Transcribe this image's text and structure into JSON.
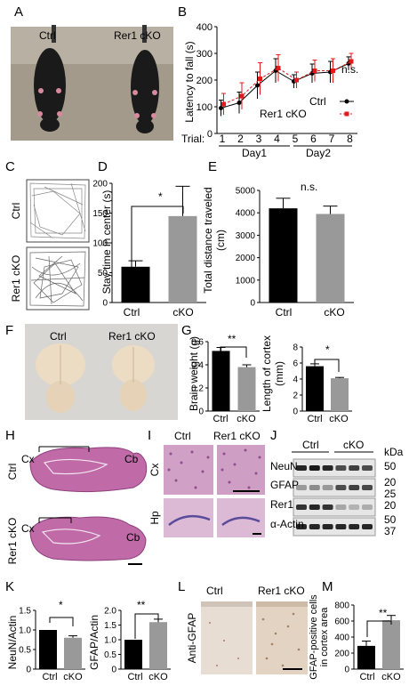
{
  "panels": {
    "A": {
      "letter": "A",
      "ctrl": "Ctrl",
      "cko": "Rer1 cKO"
    },
    "B": {
      "letter": "B",
      "ylabel": "Latency to fall (s)",
      "yticks": [
        "0",
        "100",
        "200",
        "300",
        "400"
      ],
      "trial_label": "Trial:",
      "trials": [
        "1",
        "2",
        "3",
        "4",
        "5",
        "6",
        "7",
        "8"
      ],
      "day1": "Day1",
      "day2": "Day2",
      "sig": "n.s.",
      "legend_ctrl": "Ctrl",
      "legend_cko": "Rer1 cKO"
    },
    "C": {
      "letter": "C",
      "ctrl": "Ctrl",
      "cko": "Rer1 cKO"
    },
    "D": {
      "letter": "D",
      "ylabel": "Stay time in center (s)",
      "yticks": [
        "0",
        "50",
        "100",
        "150",
        "200"
      ],
      "cat_ctrl": "Ctrl",
      "cat_cko": "cKO",
      "sig": "*"
    },
    "E": {
      "letter": "E",
      "ylabel_1": "Total distance traveled",
      "ylabel_2": "(cm)",
      "yticks": [
        "0",
        "1000",
        "2000",
        "3000",
        "4000",
        "5000"
      ],
      "cat_ctrl": "Ctrl",
      "cat_cko": "cKO",
      "sig": "n.s."
    },
    "F": {
      "letter": "F",
      "ctrl": "Ctrl",
      "cko": "Rer1 cKO"
    },
    "G": {
      "letter": "G",
      "ylabel_left": "Brain weight (g)",
      "yticks_left": [
        "0",
        "0.2",
        "0.4",
        "0.6"
      ],
      "ylabel_right_1": "Length of cortex",
      "ylabel_right_2": "(mm)",
      "yticks_right": [
        "0",
        "2",
        "4",
        "6",
        "8"
      ],
      "cat_ctrl": "Ctrl",
      "cat_cko": "cKO",
      "sig_left": "**",
      "sig_right": "*"
    },
    "H": {
      "letter": "H",
      "ctrl": "Ctrl",
      "cko": "Rer1 cKO",
      "cx": "Cx",
      "cb": "Cb"
    },
    "I": {
      "letter": "I",
      "ctrl": "Ctrl",
      "cko": "Rer1 cKO",
      "cx": "Cx",
      "hp": "Hp"
    },
    "J": {
      "letter": "J",
      "ctrl": "Ctrl",
      "cko": "cKO",
      "kda": "kDa",
      "rows": [
        "NeuN",
        "GFAP",
        "Rer1",
        "α-Actin"
      ],
      "markers": [
        "50",
        "20",
        "25",
        "20",
        "50",
        "37"
      ]
    },
    "K": {
      "letter": "K",
      "ylabel_left": "NeuN/Actin",
      "yticks_left": [
        "0",
        "0.5",
        "1.0",
        "1.5"
      ],
      "ylabel_right": "GFAP/Actin",
      "yticks_right": [
        "0",
        "0.5",
        "1.0",
        "1.5",
        "2.0"
      ],
      "cat_ctrl": "Ctrl",
      "cat_cko": "cKO",
      "sig_left": "*",
      "sig_right": "**"
    },
    "L": {
      "letter": "L",
      "ctrl": "Ctrl",
      "cko": "Rer1 cKO",
      "side": "Anti-GFAP"
    },
    "M": {
      "letter": "M",
      "ylabel_1": "GFAP-positive cells",
      "ylabel_2": "in cortex area",
      "yticks": [
        "0",
        "200",
        "400",
        "600",
        "800"
      ],
      "cat_ctrl": "Ctrl",
      "cat_cko": "cKO",
      "sig": "**"
    }
  },
  "chart_data": [
    {
      "panel": "B",
      "type": "line",
      "xlabel": "Trial",
      "ylabel": "Latency to fall (s)",
      "ylim": [
        0,
        400
      ],
      "x": [
        1,
        2,
        3,
        4,
        5,
        6,
        7,
        8
      ],
      "series": [
        {
          "name": "Ctrl",
          "color": "#000000",
          "values": [
            95,
            115,
            180,
            235,
            195,
            225,
            230,
            262
          ],
          "err": [
            30,
            40,
            50,
            45,
            25,
            35,
            40,
            25
          ]
        },
        {
          "name": "Rer1 cKO",
          "color": "#e31a1c",
          "values": [
            110,
            140,
            205,
            245,
            200,
            235,
            235,
            270
          ],
          "err": [
            40,
            50,
            60,
            50,
            30,
            40,
            45,
            30
          ]
        }
      ]
    },
    {
      "panel": "D",
      "type": "bar",
      "ylabel": "Stay time in center (s)",
      "ylim": [
        0,
        200
      ],
      "categories": [
        "Ctrl",
        "cKO"
      ],
      "values": [
        60,
        145
      ],
      "err": [
        10,
        50
      ],
      "colors": [
        "#000000",
        "#999999"
      ]
    },
    {
      "panel": "E",
      "type": "bar",
      "ylabel": "Total distance traveled (cm)",
      "ylim": [
        0,
        5000
      ],
      "categories": [
        "Ctrl",
        "cKO"
      ],
      "values": [
        4200,
        3950
      ],
      "err": [
        450,
        350
      ],
      "colors": [
        "#000000",
        "#999999"
      ]
    },
    {
      "panel": "G-left",
      "type": "bar",
      "ylabel": "Brain weight (g)",
      "ylim": [
        0,
        0.6
      ],
      "categories": [
        "Ctrl",
        "cKO"
      ],
      "values": [
        0.52,
        0.38
      ],
      "err": [
        0.03,
        0.02
      ],
      "colors": [
        "#000000",
        "#999999"
      ]
    },
    {
      "panel": "G-right",
      "type": "bar",
      "ylabel": "Length of cortex (mm)",
      "ylim": [
        0,
        8
      ],
      "categories": [
        "Ctrl",
        "cKO"
      ],
      "values": [
        5.6,
        4.1
      ],
      "err": [
        0.3,
        0.1
      ],
      "colors": [
        "#000000",
        "#999999"
      ]
    },
    {
      "panel": "K-left",
      "type": "bar",
      "ylabel": "NeuN/Actin",
      "ylim": [
        0,
        1.5
      ],
      "categories": [
        "Ctrl",
        "cKO"
      ],
      "values": [
        1.0,
        0.8
      ],
      "err": [
        0.0,
        0.05
      ],
      "colors": [
        "#000000",
        "#999999"
      ]
    },
    {
      "panel": "K-right",
      "type": "bar",
      "ylabel": "GFAP/Actin",
      "ylim": [
        0,
        2.0
      ],
      "categories": [
        "Ctrl",
        "cKO"
      ],
      "values": [
        1.0,
        1.6
      ],
      "err": [
        0.0,
        0.1
      ],
      "colors": [
        "#000000",
        "#999999"
      ]
    },
    {
      "panel": "M",
      "type": "bar",
      "ylabel": "GFAP-positive cells in cortex area",
      "ylim": [
        0,
        800
      ],
      "categories": [
        "Ctrl",
        "cKO"
      ],
      "values": [
        290,
        610
      ],
      "err": [
        60,
        60
      ],
      "colors": [
        "#000000",
        "#999999"
      ]
    }
  ]
}
